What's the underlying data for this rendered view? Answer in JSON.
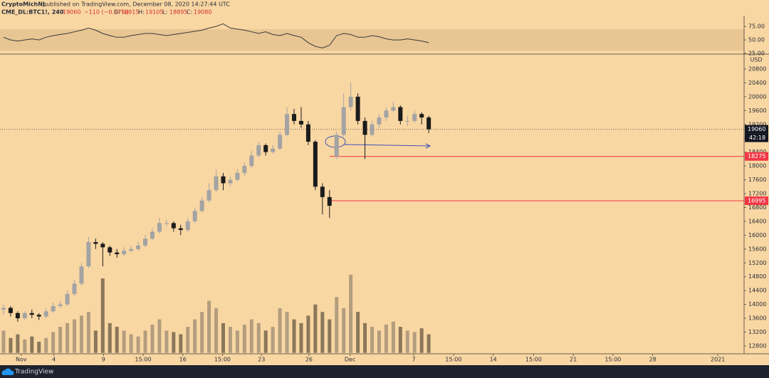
{
  "header": {
    "author": "CryptoMichNL",
    "published": "published on TradingView.com, December 08, 2020 14:27:44 UTC",
    "symbol": "CME_DL:BTC1!, 240",
    "last": "19060",
    "change": "−110 (−0.57%)",
    "ohlc": [
      {
        "label": "O:",
        "value": 18915
      },
      {
        "label": "H:",
        "value": 19105
      },
      {
        "label": "L:",
        "value": 18895
      },
      {
        "label": "C:",
        "value": 19080
      }
    ]
  },
  "footer": {
    "brand": "TradingView"
  },
  "chart_data": {
    "type": "candlestick",
    "currency": "USD",
    "x": [
      0.5,
      1.5,
      2.5,
      3.5,
      4.5,
      5.5,
      6.5,
      7.5,
      8.5,
      9.5,
      10.5,
      11.5,
      12.5,
      13.5,
      14.5,
      15.5,
      16.5,
      17.5,
      18.5,
      19.5,
      20.5,
      21.5,
      22.5,
      23.5,
      24.5,
      25.5,
      26.5,
      27.5,
      28.5,
      29.5,
      30.5,
      31.5,
      32.5,
      33.5,
      34.5,
      35.5,
      36.5,
      37.5,
      38.5,
      39.5,
      40.5,
      41.5,
      42.5,
      43.5,
      44.5,
      45.5,
      46.5,
      47.5,
      48.5,
      49.5,
      50.5,
      51.5,
      52.5,
      53.5,
      54.5,
      55.5,
      56.5,
      57.5,
      58.5,
      59.5,
      60.5
    ],
    "open": [
      13850,
      13900,
      13750,
      13600,
      13750,
      13700,
      13650,
      13800,
      13950,
      14000,
      14300,
      14600,
      15100,
      15800,
      15750,
      15650,
      15500,
      15450,
      15550,
      15600,
      15700,
      15900,
      16100,
      16350,
      16350,
      16200,
      16150,
      16400,
      16700,
      17000,
      17300,
      17700,
      17500,
      17600,
      17800,
      18000,
      18300,
      18600,
      18400,
      18500,
      18900,
      19500,
      19300,
      19200,
      18700,
      17400,
      17100,
      18275,
      18900,
      19700,
      20000,
      19300,
      18900,
      19200,
      19400,
      19600,
      19700,
      19300,
      19300,
      19500,
      19400
    ],
    "high": [
      14000,
      13950,
      13800,
      13800,
      13850,
      13750,
      13900,
      14050,
      14100,
      14400,
      14700,
      15200,
      15950,
      15900,
      15800,
      15700,
      15600,
      15650,
      15700,
      15800,
      16000,
      16200,
      16500,
      16450,
      16400,
      16300,
      16500,
      16800,
      17100,
      17500,
      17900,
      17800,
      17700,
      17900,
      18100,
      18450,
      18700,
      18650,
      18600,
      19000,
      19700,
      19650,
      19700,
      19300,
      18750,
      17500,
      17300,
      19000,
      20100,
      20400,
      20100,
      19400,
      19300,
      19500,
      19700,
      19850,
      19750,
      19450,
      19600,
      19550,
      19450
    ],
    "low": [
      13700,
      13650,
      13500,
      13550,
      13600,
      13550,
      13600,
      13750,
      13900,
      13950,
      14250,
      14550,
      15050,
      15600,
      15100,
      15400,
      15350,
      15400,
      15500,
      15550,
      15650,
      15850,
      16050,
      16250,
      16100,
      16000,
      16100,
      16350,
      16650,
      16950,
      17250,
      17300,
      17400,
      17550,
      17700,
      17950,
      18250,
      18300,
      18350,
      18450,
      18850,
      19200,
      19100,
      18600,
      17300,
      16600,
      16500,
      18200,
      18850,
      19600,
      19200,
      18200,
      18850,
      19100,
      19300,
      19550,
      19200,
      19150,
      19250,
      19200,
      18950
    ],
    "close": [
      13900,
      13750,
      13600,
      13750,
      13700,
      13650,
      13800,
      13950,
      14000,
      14300,
      14600,
      15100,
      15800,
      15750,
      15650,
      15500,
      15450,
      15550,
      15600,
      15700,
      15900,
      16100,
      16350,
      16350,
      16200,
      16150,
      16400,
      16700,
      17000,
      17300,
      17700,
      17500,
      17600,
      17800,
      18000,
      18300,
      18600,
      18400,
      18500,
      18900,
      19500,
      19300,
      19200,
      18700,
      17400,
      17100,
      16850,
      18900,
      19700,
      20000,
      19300,
      18900,
      19200,
      19400,
      19600,
      19700,
      19300,
      19300,
      19500,
      19400,
      19060
    ],
    "up_color": "#a3a3a3",
    "down_color": "#1b1b1b",
    "volume": [
      30,
      20,
      25,
      18,
      22,
      15,
      20,
      28,
      35,
      40,
      45,
      50,
      55,
      30,
      100,
      40,
      35,
      30,
      25,
      22,
      30,
      38,
      45,
      30,
      28,
      25,
      35,
      45,
      55,
      70,
      60,
      40,
      35,
      30,
      38,
      45,
      40,
      30,
      35,
      60,
      55,
      45,
      40,
      50,
      65,
      55,
      45,
      75,
      60,
      105,
      55,
      40,
      35,
      30,
      38,
      42,
      35,
      30,
      28,
      33,
      25
    ],
    "volume_ylim": [
      0,
      400
    ],
    "volume_up_color": "rgba(110,100,90,0.5)",
    "volume_down_color": "rgba(50,40,30,0.55)",
    "rsi": [
      55,
      50,
      48,
      50,
      52,
      50,
      55,
      58,
      60,
      62,
      65,
      68,
      72,
      68,
      62,
      58,
      55,
      55,
      58,
      60,
      62,
      62,
      60,
      58,
      60,
      62,
      64,
      66,
      68,
      72,
      75,
      80,
      72,
      70,
      68,
      65,
      62,
      65,
      60,
      58,
      62,
      58,
      55,
      45,
      38,
      35,
      40,
      58,
      62,
      60,
      55,
      55,
      58,
      56,
      52,
      50,
      50,
      52,
      50,
      48,
      45
    ],
    "rsi_ylim": [
      25,
      95
    ],
    "rsi_band": [
      30,
      70
    ],
    "rsi_color": "#3a3a3a",
    "rsi_ticks": [
      {
        "value": 75,
        "label": "75.00"
      },
      {
        "value": 50,
        "label": "50.00"
      },
      {
        "value": 25,
        "label": "25.00"
      }
    ],
    "xlim": [
      0,
      105
    ],
    "xticks": [
      {
        "value": 3,
        "label": "Nov"
      },
      {
        "value": 7.6,
        "label": "4"
      },
      {
        "value": 14.6,
        "label": "9"
      },
      {
        "value": 20.2,
        "label": "15:00"
      },
      {
        "value": 25.8,
        "label": "16"
      },
      {
        "value": 31.4,
        "label": "15:00"
      },
      {
        "value": 36.9,
        "label": "23"
      },
      {
        "value": 43.6,
        "label": "26"
      },
      {
        "value": 49.4,
        "label": "Dec"
      },
      {
        "value": 58.4,
        "label": "7"
      },
      {
        "value": 64,
        "label": "15:00"
      },
      {
        "value": 69.6,
        "label": "14"
      },
      {
        "value": 75.3,
        "label": "15:00"
      },
      {
        "value": 80.9,
        "label": "21"
      },
      {
        "value": 86.5,
        "label": "15:00"
      },
      {
        "value": 92.1,
        "label": "28"
      },
      {
        "value": 101.3,
        "label": "2021"
      }
    ],
    "ylim": [
      12600,
      21200
    ],
    "yticks": [
      20800,
      20400,
      20000,
      19600,
      19200,
      18800,
      18400,
      18000,
      17600,
      17200,
      16800,
      16400,
      16000,
      15600,
      15200,
      14800,
      14400,
      14000,
      13600,
      13200,
      12800
    ],
    "last_price": 19060,
    "countdown": "42:18",
    "price_lines": [
      {
        "value": 18275,
        "from": 46.5,
        "color": "#f23645"
      },
      {
        "value": 16995,
        "from": 46.2,
        "color": "#f23645"
      }
    ]
  }
}
